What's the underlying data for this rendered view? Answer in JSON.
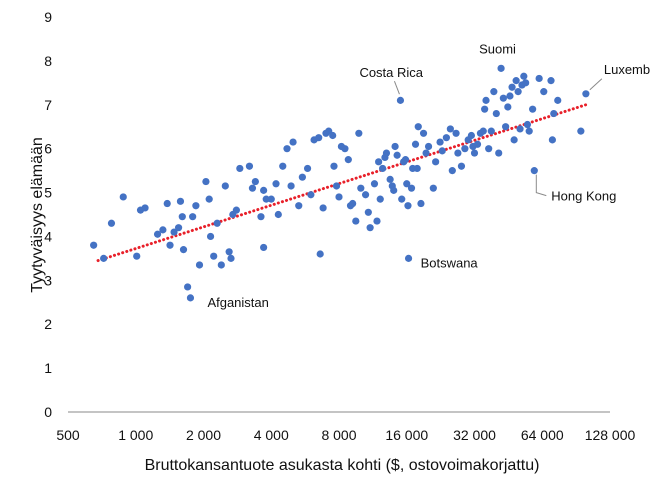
{
  "chart_data": {
    "type": "scatter",
    "xlabel": "Bruttokansantuote asukasta kohti ($, ostovoimakorjattu)",
    "ylabel": "Tyytyväisyys elämään",
    "x_scale": "log2",
    "xlim": [
      500,
      128000
    ],
    "ylim": [
      0,
      9
    ],
    "x_ticks": [
      500,
      1000,
      2000,
      4000,
      8000,
      16000,
      32000,
      64000,
      128000
    ],
    "x_tick_labels": [
      "500",
      "1 000",
      "2 000",
      "4 000",
      "8 000",
      "16 000",
      "32 000",
      "64 000",
      "128 000"
    ],
    "y_ticks": [
      0,
      1,
      2,
      3,
      4,
      5,
      6,
      7,
      8,
      9
    ],
    "y_tick_labels": [
      "0",
      "1",
      "2",
      "3",
      "4",
      "5",
      "6",
      "7",
      "8",
      "9"
    ],
    "grid": false,
    "marker_color": "#4472C4",
    "trendline": {
      "style": "dotted",
      "color": "#E8202A",
      "points": [
        [
          680,
          3.45
        ],
        [
          100000,
          7.0
        ]
      ]
    },
    "annotations": [
      {
        "text": "Suomi",
        "x": 42000,
        "y": 7.83
      },
      {
        "text": "Luxemburg",
        "x": 100000,
        "y": 7.25
      },
      {
        "text": "Costa Rica",
        "x": 15000,
        "y": 7.15
      },
      {
        "text": "Hong Kong",
        "x": 59000,
        "y": 5.5
      },
      {
        "text": "Botswana",
        "x": 16300,
        "y": 3.5
      },
      {
        "text": "Afganistan",
        "x": 1750,
        "y": 2.6
      }
    ],
    "points": [
      [
        650,
        3.8
      ],
      [
        720,
        3.5
      ],
      [
        780,
        4.3
      ],
      [
        880,
        4.9
      ],
      [
        1010,
        3.55
      ],
      [
        1050,
        4.6
      ],
      [
        1100,
        4.65
      ],
      [
        1250,
        4.05
      ],
      [
        1320,
        4.15
      ],
      [
        1380,
        4.75
      ],
      [
        1420,
        3.8
      ],
      [
        1480,
        4.1
      ],
      [
        1550,
        4.2
      ],
      [
        1580,
        4.8
      ],
      [
        1610,
        4.45
      ],
      [
        1630,
        3.7
      ],
      [
        1700,
        2.85
      ],
      [
        1750,
        2.6
      ],
      [
        1790,
        4.45
      ],
      [
        1850,
        4.7
      ],
      [
        1920,
        3.35
      ],
      [
        2050,
        5.25
      ],
      [
        2120,
        4.85
      ],
      [
        2150,
        4.0
      ],
      [
        2220,
        3.55
      ],
      [
        2300,
        4.3
      ],
      [
        2400,
        3.35
      ],
      [
        2500,
        5.15
      ],
      [
        2600,
        3.65
      ],
      [
        2650,
        3.5
      ],
      [
        2700,
        4.5
      ],
      [
        2800,
        4.6
      ],
      [
        2900,
        5.55
      ],
      [
        3200,
        5.6
      ],
      [
        3300,
        5.1
      ],
      [
        3400,
        5.25
      ],
      [
        3600,
        4.45
      ],
      [
        3700,
        3.75
      ],
      [
        3700,
        5.05
      ],
      [
        3800,
        4.85
      ],
      [
        4000,
        4.85
      ],
      [
        4200,
        5.2
      ],
      [
        4300,
        4.5
      ],
      [
        4500,
        5.6
      ],
      [
        4700,
        6.0
      ],
      [
        4900,
        5.15
      ],
      [
        5000,
        6.15
      ],
      [
        5300,
        4.7
      ],
      [
        5500,
        5.35
      ],
      [
        5800,
        5.55
      ],
      [
        6000,
        4.95
      ],
      [
        6200,
        6.2
      ],
      [
        6500,
        6.25
      ],
      [
        6600,
        3.6
      ],
      [
        6800,
        4.65
      ],
      [
        7000,
        6.35
      ],
      [
        7200,
        6.4
      ],
      [
        7500,
        6.3
      ],
      [
        7600,
        5.6
      ],
      [
        7800,
        5.15
      ],
      [
        8000,
        4.9
      ],
      [
        8200,
        6.05
      ],
      [
        8500,
        6.0
      ],
      [
        8800,
        5.75
      ],
      [
        9000,
        4.7
      ],
      [
        9200,
        4.75
      ],
      [
        9500,
        4.35
      ],
      [
        9800,
        6.35
      ],
      [
        10000,
        5.1
      ],
      [
        10500,
        4.95
      ],
      [
        10800,
        4.55
      ],
      [
        11000,
        4.2
      ],
      [
        11500,
        5.2
      ],
      [
        11800,
        4.35
      ],
      [
        12000,
        5.7
      ],
      [
        12200,
        4.85
      ],
      [
        12500,
        5.55
      ],
      [
        12800,
        5.8
      ],
      [
        13000,
        5.9
      ],
      [
        13500,
        5.3
      ],
      [
        13800,
        5.15
      ],
      [
        14000,
        5.05
      ],
      [
        14200,
        6.05
      ],
      [
        14500,
        5.85
      ],
      [
        15000,
        7.1
      ],
      [
        15200,
        4.85
      ],
      [
        15500,
        5.7
      ],
      [
        15800,
        5.75
      ],
      [
        16000,
        5.2
      ],
      [
        16200,
        4.7
      ],
      [
        16300,
        3.5
      ],
      [
        16800,
        5.1
      ],
      [
        17000,
        5.55
      ],
      [
        17500,
        6.1
      ],
      [
        17800,
        5.55
      ],
      [
        18000,
        6.5
      ],
      [
        18500,
        4.75
      ],
      [
        19000,
        6.35
      ],
      [
        19500,
        5.9
      ],
      [
        20000,
        6.05
      ],
      [
        21000,
        5.1
      ],
      [
        21500,
        5.7
      ],
      [
        22500,
        6.15
      ],
      [
        23000,
        5.95
      ],
      [
        24000,
        6.25
      ],
      [
        25000,
        6.45
      ],
      [
        25500,
        5.5
      ],
      [
        26500,
        6.35
      ],
      [
        27000,
        5.9
      ],
      [
        28000,
        5.6
      ],
      [
        29000,
        6.0
      ],
      [
        30000,
        6.2
      ],
      [
        31000,
        6.3
      ],
      [
        31500,
        6.05
      ],
      [
        32000,
        5.9
      ],
      [
        33000,
        6.1
      ],
      [
        34000,
        6.35
      ],
      [
        35000,
        6.4
      ],
      [
        35500,
        6.9
      ],
      [
        36000,
        7.1
      ],
      [
        37000,
        6.0
      ],
      [
        38000,
        6.4
      ],
      [
        39000,
        7.3
      ],
      [
        40000,
        6.8
      ],
      [
        41000,
        5.9
      ],
      [
        42000,
        7.83
      ],
      [
        43000,
        7.15
      ],
      [
        44000,
        6.5
      ],
      [
        45000,
        6.95
      ],
      [
        46000,
        7.2
      ],
      [
        47000,
        7.4
      ],
      [
        48000,
        6.2
      ],
      [
        49000,
        7.55
      ],
      [
        50000,
        7.3
      ],
      [
        51000,
        6.45
      ],
      [
        52000,
        7.45
      ],
      [
        53000,
        7.65
      ],
      [
        54000,
        7.5
      ],
      [
        55000,
        6.55
      ],
      [
        56000,
        6.4
      ],
      [
        58000,
        6.9
      ],
      [
        59000,
        5.5
      ],
      [
        62000,
        7.6
      ],
      [
        65000,
        7.3
      ],
      [
        70000,
        7.55
      ],
      [
        71000,
        6.2
      ],
      [
        72000,
        6.8
      ],
      [
        75000,
        7.1
      ],
      [
        95000,
        6.4
      ],
      [
        100000,
        7.25
      ]
    ]
  }
}
